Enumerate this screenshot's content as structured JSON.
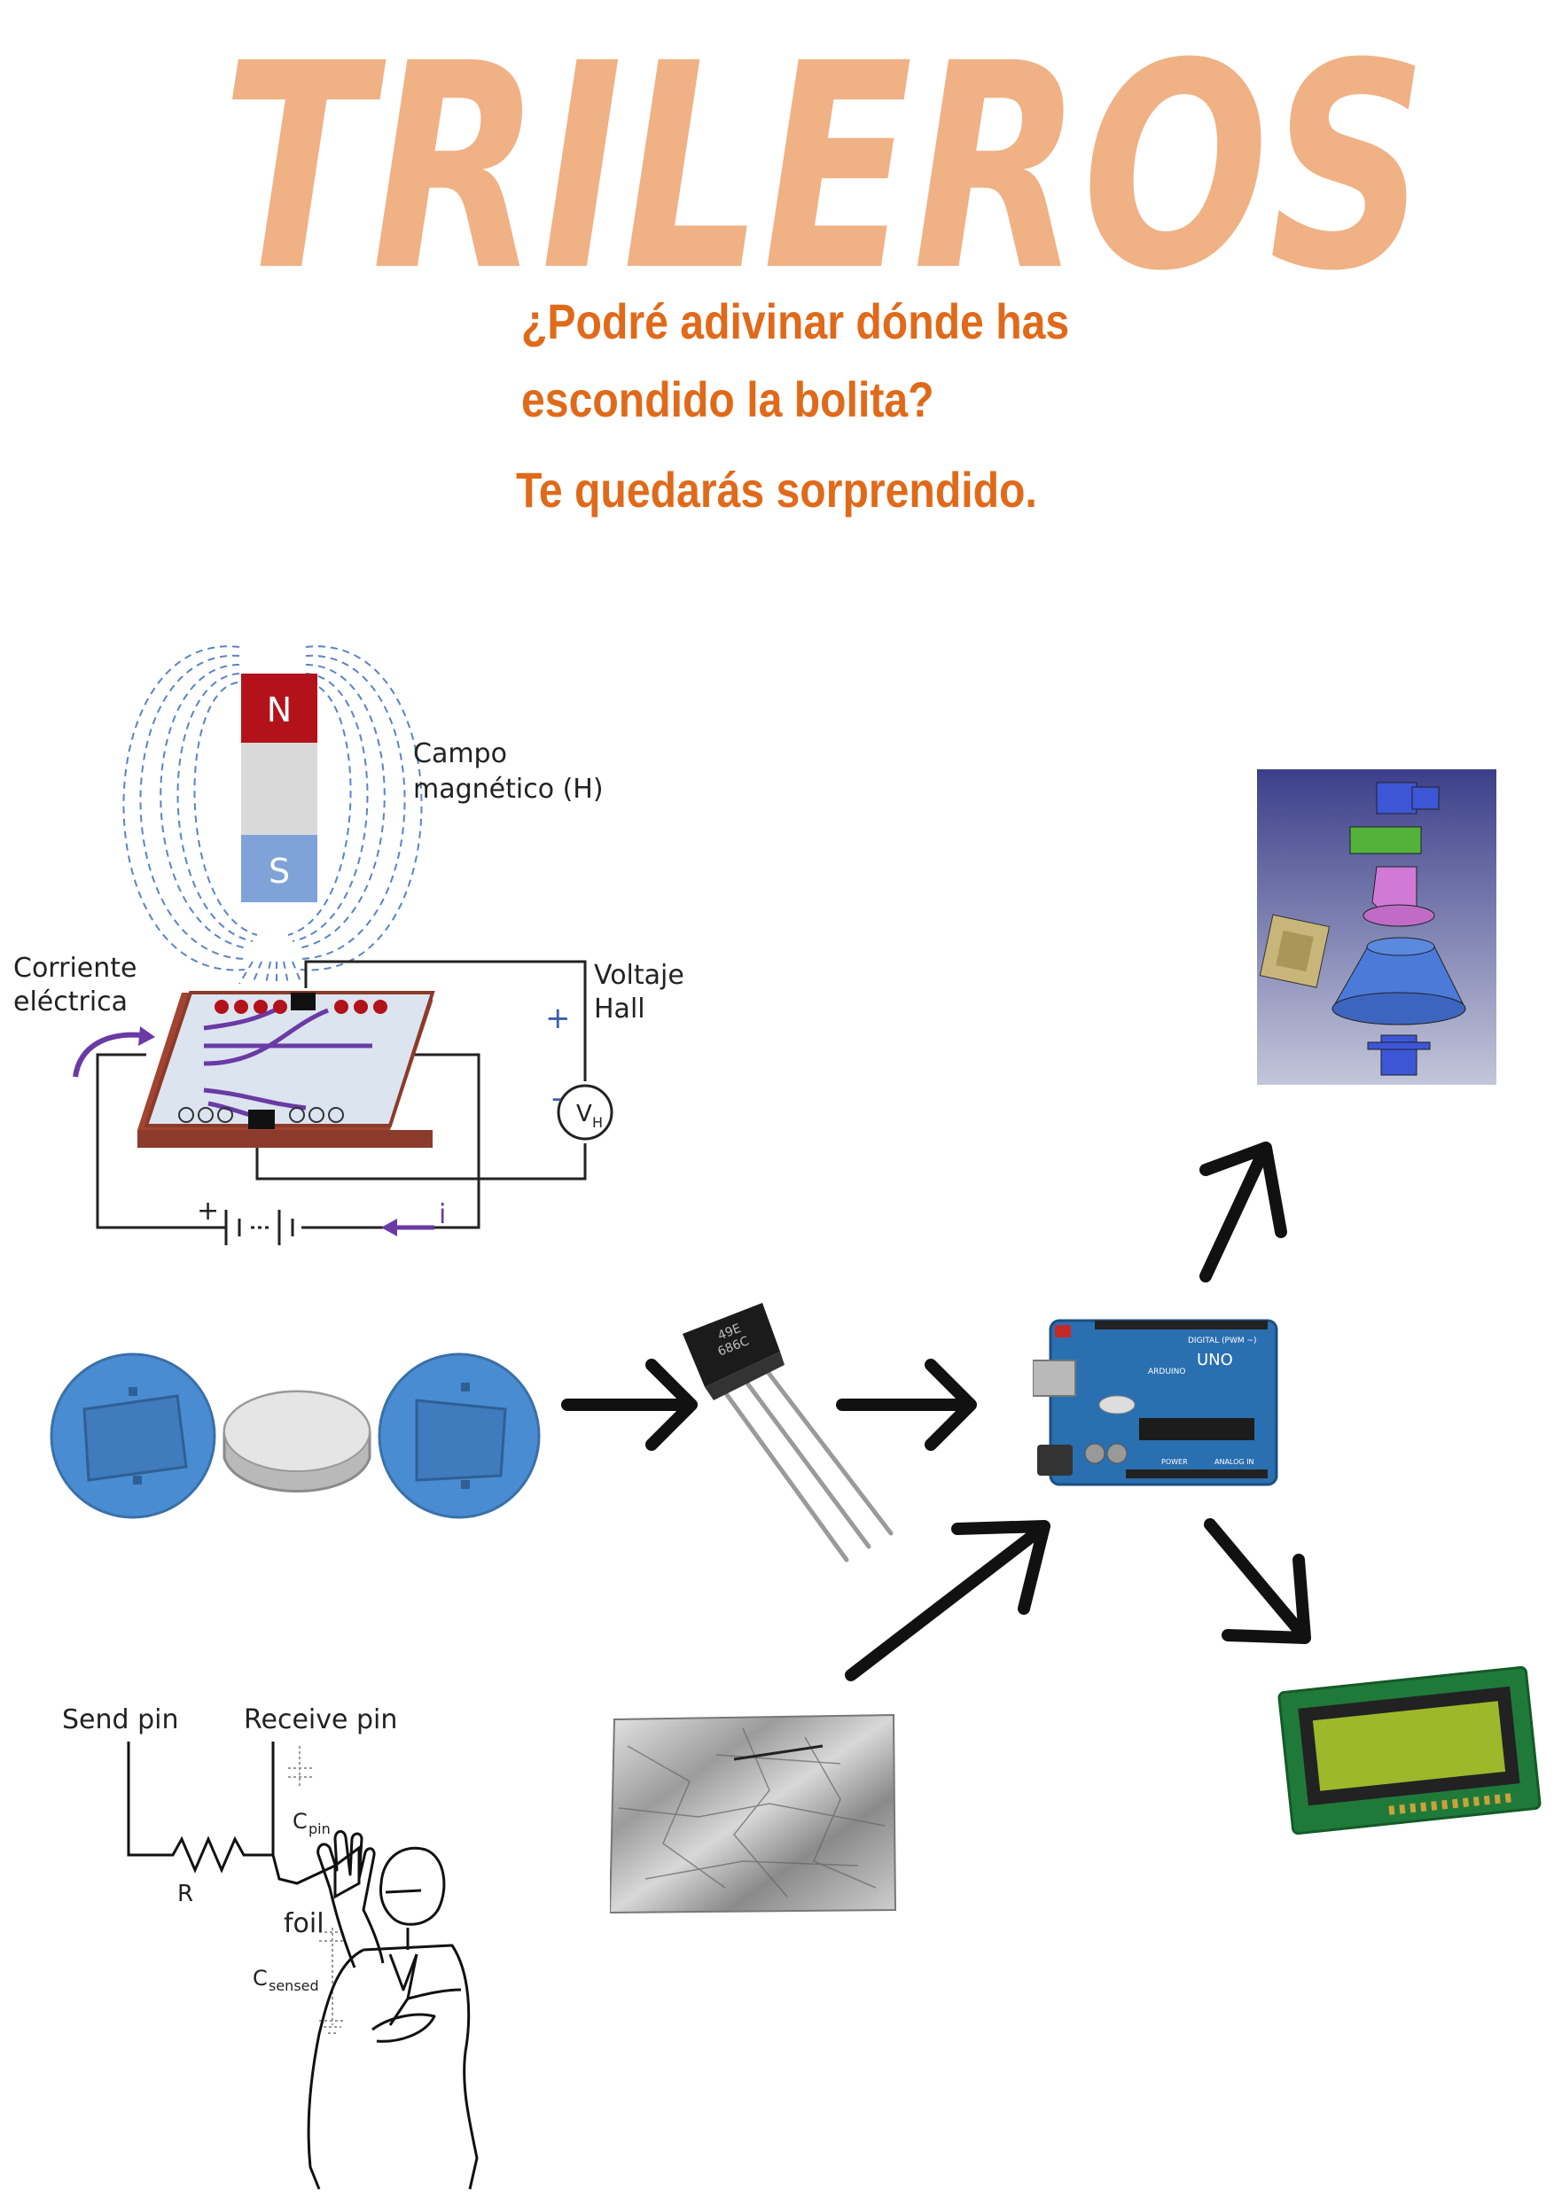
{
  "title": "TRILEROS",
  "subtitle_lines": [
    "¿Podré adivinar dónde has",
    "escondido la bolita?",
    "Te quedarás sorprendido."
  ],
  "hall_diagram": {
    "pole_north": "N",
    "pole_south": "S",
    "field_label_1": "Campo",
    "field_label_2": "magnético (H)",
    "current_label_1": "Corriente",
    "current_label_2": "eléctrica",
    "voltage_label_1": "Voltaje",
    "voltage_label_2": "Hall",
    "plus": "+",
    "minus": "-",
    "vh": "V",
    "vh_sub": "H",
    "current_i": "i"
  },
  "sensor_chip_text": [
    "49E",
    "686C"
  ],
  "arduino": {
    "model": "UNO",
    "brand": "ARDUINO",
    "digital": "DIGITAL (PWM ~)",
    "power": "POWER",
    "analog": "ANALOG IN"
  },
  "capacitive": {
    "send_pin": "Send pin",
    "receive_pin": "Receive pin",
    "resistor": "R",
    "c_pin": "C",
    "c_pin_sub": "pin",
    "foil": "foil",
    "c_sensed": "C",
    "c_sensed_sub": "sensed"
  },
  "colors": {
    "title": "#f0b185",
    "subtitle": "#e06a1a",
    "north": "#b3121b",
    "south": "#7fa3d8",
    "field_lines": "#5b83c4",
    "arduino": "#2a6fb0",
    "cup": "#4a8cd1"
  }
}
